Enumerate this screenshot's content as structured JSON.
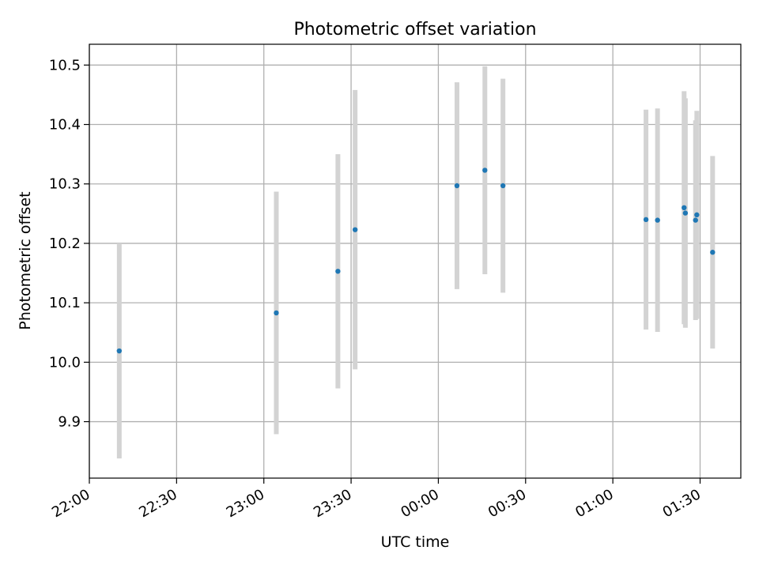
{
  "chart_data": {
    "type": "scatter",
    "title": "Photometric offset variation",
    "xlabel": "UTC time",
    "ylabel": "Photometric offset",
    "x_start": "22:00",
    "xlim_minutes": [
      0,
      224
    ],
    "ylim": [
      9.805,
      10.535
    ],
    "x_ticks": [
      {
        "minute": 0,
        "label": "22:00"
      },
      {
        "minute": 30,
        "label": "22:30"
      },
      {
        "minute": 60,
        "label": "23:00"
      },
      {
        "minute": 90,
        "label": "23:30"
      },
      {
        "minute": 120,
        "label": "00:00"
      },
      {
        "minute": 150,
        "label": "00:30"
      },
      {
        "minute": 180,
        "label": "01:00"
      },
      {
        "minute": 210,
        "label": "01:30"
      }
    ],
    "y_ticks": [
      {
        "value": 9.9,
        "label": "9.9"
      },
      {
        "value": 10.0,
        "label": "10.0"
      },
      {
        "value": 10.1,
        "label": "10.1"
      },
      {
        "value": 10.2,
        "label": "10.2"
      },
      {
        "value": 10.3,
        "label": "10.3"
      },
      {
        "value": 10.4,
        "label": "10.4"
      },
      {
        "value": 10.5,
        "label": "10.5"
      }
    ],
    "grid": true,
    "colors": {
      "point": "#1f77b4",
      "errorbar": "#d3d3d3",
      "grid": "#b0b0b0"
    },
    "points": [
      {
        "time": "22:10:17",
        "y": 10.019,
        "err": 0.181
      },
      {
        "time": "23:04:17",
        "y": 10.083,
        "err": 0.204
      },
      {
        "time": "23:25:28",
        "y": 10.153,
        "err": 0.197
      },
      {
        "time": "23:31:23",
        "y": 10.223,
        "err": 0.235
      },
      {
        "time": "00:06:24",
        "y": 10.297,
        "err": 0.174
      },
      {
        "time": "00:16:00",
        "y": 10.323,
        "err": 0.175
      },
      {
        "time": "00:22:13",
        "y": 10.297,
        "err": 0.18
      },
      {
        "time": "01:11:24",
        "y": 10.24,
        "err": 0.185
      },
      {
        "time": "01:15:22",
        "y": 10.239,
        "err": 0.188
      },
      {
        "time": "01:24:30",
        "y": 10.26,
        "err": 0.196
      },
      {
        "time": "01:24:56",
        "y": 10.251,
        "err": 0.193
      },
      {
        "time": "01:28:26",
        "y": 10.239,
        "err": 0.168
      },
      {
        "time": "01:28:52",
        "y": 10.248,
        "err": 0.175
      },
      {
        "time": "01:34:18",
        "y": 10.185,
        "err": 0.162
      }
    ]
  }
}
